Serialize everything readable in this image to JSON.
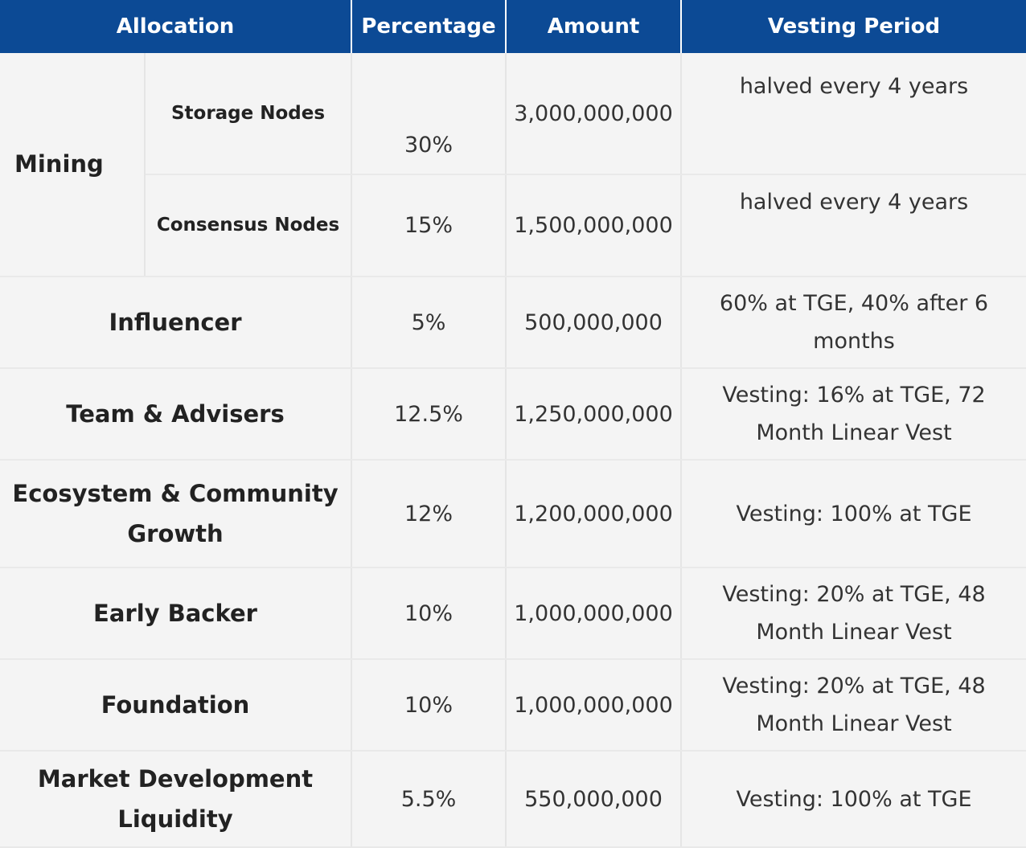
{
  "table": {
    "headers": {
      "allocation": "Allocation",
      "percentage": "Percentage",
      "amount": "Amount",
      "vesting_period": "Vesting Period"
    },
    "mining_group": {
      "label": "Mining",
      "rows": [
        {
          "sub": "Storage Nodes",
          "percentage": "30%",
          "amount": "3,000,000,000",
          "vesting": "halved every 4 years"
        },
        {
          "sub": "Consensus Nodes",
          "percentage": "15%",
          "amount": "1,500,000,000",
          "vesting": "halved every 4 years"
        }
      ]
    },
    "rows": [
      {
        "allocation": "Influencer",
        "percentage": "5%",
        "amount": "500,000,000",
        "vesting": "60% at TGE, 40% after 6 months"
      },
      {
        "allocation": "Team & Advisers",
        "percentage": "12.5%",
        "amount": "1,250,000,000",
        "vesting": "Vesting: 16% at TGE, 72 Month Linear Vest"
      },
      {
        "allocation": "Ecosystem & Community Growth",
        "percentage": "12%",
        "amount": "1,200,000,000",
        "vesting": "Vesting: 100% at TGE"
      },
      {
        "allocation": "Early Backer",
        "percentage": "10%",
        "amount": "1,000,000,000",
        "vesting": "Vesting: 20% at TGE, 48 Month Linear Vest"
      },
      {
        "allocation": "Foundation",
        "percentage": "10%",
        "amount": "1,000,000,000",
        "vesting": "Vesting: 20% at TGE, 48 Month Linear Vest"
      },
      {
        "allocation": "Market Development Liquidity",
        "percentage": "5.5%",
        "amount": "550,000,000",
        "vesting": "Vesting: 100% at TGE"
      }
    ]
  },
  "colors": {
    "header_bg": "#0c4a95",
    "header_text": "#ffffff",
    "cell_bg": "#f4f4f4",
    "text": "#333333"
  }
}
